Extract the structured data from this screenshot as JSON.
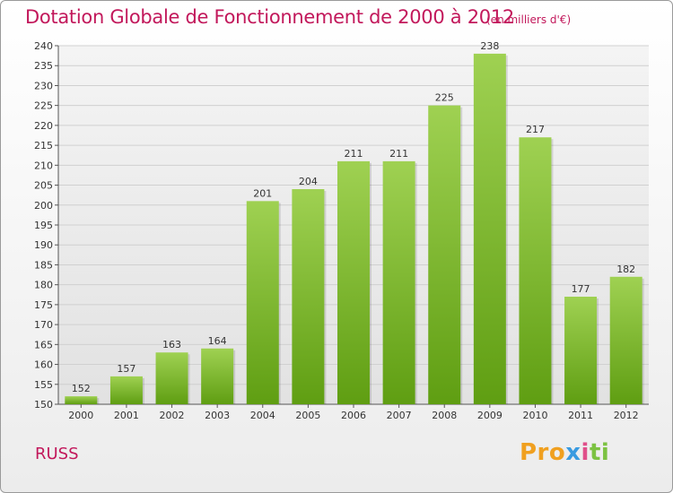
{
  "header": {
    "title": "Dotation Globale de Fonctionnement de 2000 à 2012",
    "subtitle": "(en milliers d'€)"
  },
  "footer": {
    "commune": "RUSS",
    "logo": "Proxiti",
    "logo_parts": [
      "Pro",
      "x",
      "i",
      "ti"
    ]
  },
  "colors": {
    "accent": "#c2185b",
    "bar_light": "#9fd152",
    "bar_dark": "#5f9e12"
  },
  "chart_data": {
    "type": "bar",
    "categories": [
      "2000",
      "2001",
      "2002",
      "2003",
      "2004",
      "2005",
      "2006",
      "2007",
      "2008",
      "2009",
      "2010",
      "2011",
      "2012"
    ],
    "values": [
      152,
      157,
      163,
      164,
      201,
      204,
      211,
      211,
      225,
      238,
      217,
      177,
      182
    ],
    "ylim": [
      150,
      240
    ],
    "yticks": [
      150,
      155,
      160,
      165,
      170,
      175,
      180,
      185,
      190,
      195,
      200,
      205,
      210,
      215,
      220,
      225,
      230,
      235,
      240
    ],
    "grid": true,
    "xlabel": "",
    "ylabel": ""
  }
}
